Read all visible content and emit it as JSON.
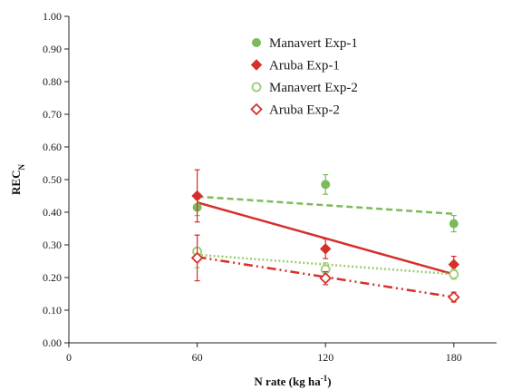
{
  "chart_data": {
    "type": "scatter",
    "xlabel": {
      "main": "N rate (kg ha",
      "sup": "-1",
      "close": ")"
    },
    "ylabel": {
      "main": "REC",
      "sub": "N"
    },
    "xlim": [
      0,
      200
    ],
    "ylim": [
      0,
      1
    ],
    "xticks": [
      0,
      60,
      120,
      180
    ],
    "xtick_labels": [
      "0",
      "60",
      "120",
      "180"
    ],
    "yticks": [
      0,
      0.1,
      0.2,
      0.3,
      0.4,
      0.5,
      0.6,
      0.7,
      0.8,
      0.9,
      1.0
    ],
    "ytick_labels": [
      "0.00",
      "0.10",
      "0.20",
      "0.30",
      "0.40",
      "0.50",
      "0.60",
      "0.70",
      "0.80",
      "0.90",
      "1.00"
    ],
    "grid": false,
    "legend_position": "top-center",
    "series": [
      {
        "name": "Manavert Exp-1",
        "color": "#7dbb5a",
        "marker": "filled-circle",
        "x": [
          60,
          120,
          180
        ],
        "y": [
          0.415,
          0.485,
          0.365
        ],
        "err": [
          0.025,
          0.03,
          0.025
        ],
        "trend": {
          "x": [
            60,
            180
          ],
          "y": [
            0.448,
            0.395
          ],
          "style": "dashed"
        }
      },
      {
        "name": "Aruba Exp-1",
        "color": "#d62f2a",
        "marker": "filled-diamond",
        "x": [
          60,
          120,
          180
        ],
        "y": [
          0.45,
          0.288,
          0.24
        ],
        "err": [
          0.08,
          0.03,
          0.025
        ],
        "trend": {
          "x": [
            60,
            180
          ],
          "y": [
            0.43,
            0.21
          ],
          "style": "solid"
        }
      },
      {
        "name": "Manavert Exp-2",
        "color": "#9ccc78",
        "marker": "open-circle",
        "x": [
          60,
          120,
          180
        ],
        "y": [
          0.28,
          0.225,
          0.21
        ],
        "err": [
          0.05,
          0.02,
          0.015
        ],
        "trend": {
          "x": [
            60,
            180
          ],
          "y": [
            0.27,
            0.21
          ],
          "style": "dotted"
        }
      },
      {
        "name": "Aruba Exp-2",
        "color": "#d62f2a",
        "marker": "open-diamond",
        "x": [
          60,
          120,
          180
        ],
        "y": [
          0.26,
          0.198,
          0.14
        ],
        "err": [
          0.07,
          0.02,
          0.015
        ],
        "trend": {
          "x": [
            60,
            180
          ],
          "y": [
            0.263,
            0.14
          ],
          "style": "dash-dot-dot"
        }
      }
    ]
  }
}
